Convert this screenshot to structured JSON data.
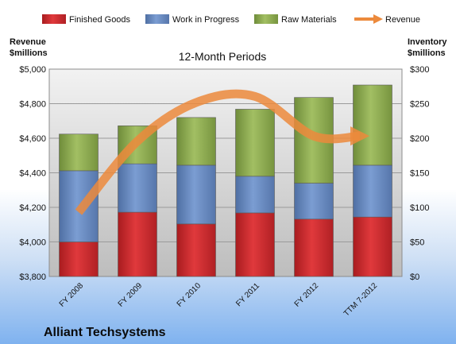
{
  "chart_data": {
    "type": "bar",
    "stacked": true,
    "title": "12-Month Periods",
    "company": "Alliant Techsystems",
    "y_left_label": [
      "Revenue",
      "$millions"
    ],
    "y_right_label": [
      "Inventory",
      "$millions"
    ],
    "ylim_left": [
      3800,
      5000
    ],
    "ylim_right": [
      0,
      300
    ],
    "yticks_left": [
      "$3,800",
      "$4,000",
      "$4,200",
      "$4,400",
      "$4,600",
      "$4,800",
      "$5,000"
    ],
    "yticks_right": [
      "$0",
      "$50",
      "$100",
      "$150",
      "$200",
      "$250",
      "$300"
    ],
    "categories": [
      "FY 2008",
      "FY 2009",
      "FY 2010",
      "FY 2011",
      "FY 2012",
      "TTM 7-2012"
    ],
    "series": [
      {
        "name": "Finished Goods",
        "axis": "right",
        "color": "#d42a2e",
        "values": [
          50,
          93,
          76,
          92,
          83,
          86
        ]
      },
      {
        "name": "Work in Progress",
        "axis": "right",
        "color": "#6b8fc7",
        "values": [
          103,
          70,
          85,
          53,
          52,
          75
        ]
      },
      {
        "name": "Raw Materials",
        "axis": "right",
        "color": "#93b155",
        "values": [
          53,
          55,
          69,
          97,
          124,
          116
        ]
      },
      {
        "name": "Revenue",
        "axis": "left",
        "type": "line",
        "color": "#ec8a3c",
        "values": [
          4172,
          4583,
          4807,
          4842,
          4613,
          4613
        ]
      }
    ],
    "grid": true,
    "legend": "top"
  }
}
